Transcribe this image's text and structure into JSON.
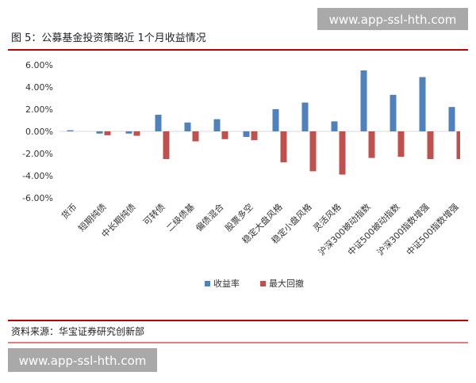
{
  "watermark_top": "www.app-ssl-hth.com",
  "watermark_bottom": "www.app-ssl-hth.com",
  "source": "资料来源：华宝证券研究创新部",
  "chart_data": {
    "type": "bar",
    "title": "图 5：公募基金投资策略近 1个月收益情况",
    "categories": [
      "货币",
      "短期纯债",
      "中长期纯债",
      "可转债",
      "二级债基",
      "偏债混合",
      "股票多空",
      "稳定大盘风格",
      "稳定小盘风格",
      "灵活风格",
      "沪深300被动指数",
      "中证500被动指数",
      "沪深300指数增强",
      "中证500指数增强"
    ],
    "series": [
      {
        "name": "收益率",
        "color": "#4f81bd",
        "values": [
          0.1,
          -0.2,
          -0.2,
          1.5,
          0.8,
          1.1,
          -0.5,
          2.0,
          2.6,
          0.9,
          5.5,
          3.3,
          4.9,
          2.2
        ]
      },
      {
        "name": "最大回撤",
        "color": "#c0504d",
        "values": [
          0,
          -0.35,
          -0.4,
          -2.5,
          -0.9,
          -0.7,
          -0.8,
          -2.8,
          -3.6,
          -3.9,
          -2.4,
          -2.3,
          -2.5,
          -2.5
        ]
      }
    ],
    "ylim": [
      -6,
      6
    ],
    "yticks": [
      {
        "value": -6,
        "label": "-6.00%"
      },
      {
        "value": -4,
        "label": "-4.00%"
      },
      {
        "value": -2,
        "label": "-2.00%"
      },
      {
        "value": 0,
        "label": "0.00%"
      },
      {
        "value": 2,
        "label": "2.00%"
      },
      {
        "value": 4,
        "label": "4.00%"
      },
      {
        "value": 6,
        "label": "6.00%"
      }
    ],
    "grid": false,
    "legend": "bottom"
  }
}
